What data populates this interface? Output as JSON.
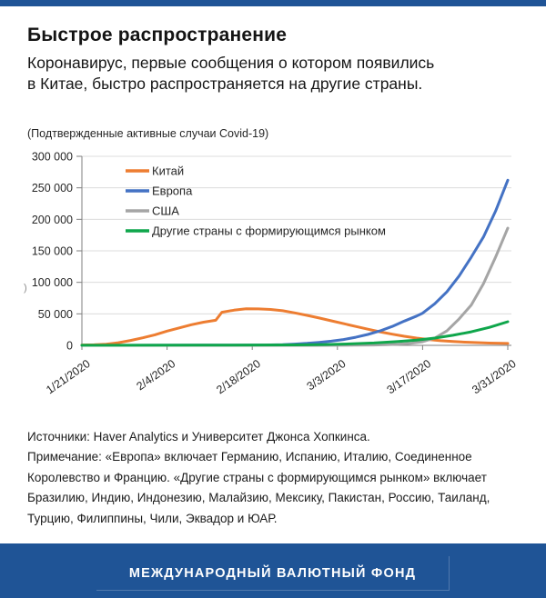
{
  "header": {
    "title": "Быстрое распространение",
    "subtitle_lines": [
      "Коронавирус, первые сообщения о котором появились",
      "в Китае, быстро распространяется на другие страны."
    ]
  },
  "stray": {
    "text": ")"
  },
  "chart_data": {
    "type": "line",
    "title": "(Подтвержденные активные случаи Covid-19)",
    "xlabel": "",
    "ylabel": "",
    "ylim": [
      0,
      300000
    ],
    "grid": true,
    "legend_position": "top-left-inside",
    "y_ticks": [
      {
        "v": 300000,
        "label": "300 000"
      },
      {
        "v": 250000,
        "label": "250 000"
      },
      {
        "v": 200000,
        "label": "200 000"
      },
      {
        "v": 150000,
        "label": "150 000"
      },
      {
        "v": 100000,
        "label": "100 000"
      },
      {
        "v": 50000,
        "label": "50 000"
      },
      {
        "v": 0,
        "label": "0"
      }
    ],
    "x_ticks": [
      "1/21/2020",
      "2/4/2020",
      "2/18/2020",
      "3/3/2020",
      "3/17/2020",
      "3/31/2020"
    ],
    "series": [
      {
        "name": "Китай",
        "color": "#ED7D31",
        "points": [
          [
            "1/21/2020",
            550
          ],
          [
            "1/23/2020",
            900
          ],
          [
            "1/25/2020",
            1900
          ],
          [
            "1/27/2020",
            4200
          ],
          [
            "1/29/2020",
            7800
          ],
          [
            "1/31/2020",
            11900
          ],
          [
            "2/2/2020",
            16800
          ],
          [
            "2/4/2020",
            22600
          ],
          [
            "2/6/2020",
            27700
          ],
          [
            "2/8/2020",
            32700
          ],
          [
            "2/10/2020",
            36800
          ],
          [
            "2/12/2020",
            39800
          ],
          [
            "2/13/2020",
            52500
          ],
          [
            "2/15/2020",
            55800
          ],
          [
            "2/17/2020",
            58000
          ],
          [
            "2/19/2020",
            57800
          ],
          [
            "2/21/2020",
            57000
          ],
          [
            "2/23/2020",
            55000
          ],
          [
            "2/25/2020",
            51500
          ],
          [
            "2/27/2020",
            47600
          ],
          [
            "2/29/2020",
            43400
          ],
          [
            "3/2/2020",
            39000
          ],
          [
            "3/4/2020",
            34500
          ],
          [
            "3/6/2020",
            30000
          ],
          [
            "3/8/2020",
            25700
          ],
          [
            "3/10/2020",
            21500
          ],
          [
            "3/12/2020",
            17700
          ],
          [
            "3/14/2020",
            14400
          ],
          [
            "3/16/2020",
            11600
          ],
          [
            "3/18/2020",
            9300
          ],
          [
            "3/20/2020",
            7400
          ],
          [
            "3/22/2020",
            6100
          ],
          [
            "3/24/2020",
            5100
          ],
          [
            "3/26/2020",
            4300
          ],
          [
            "3/28/2020",
            3600
          ],
          [
            "3/31/2020",
            3000
          ]
        ]
      },
      {
        "name": "Европа",
        "color": "#4472C4",
        "points": [
          [
            "1/21/2020",
            0
          ],
          [
            "2/1/2020",
            100
          ],
          [
            "2/10/2020",
            300
          ],
          [
            "2/15/2020",
            400
          ],
          [
            "2/20/2020",
            600
          ],
          [
            "2/23/2020",
            1200
          ],
          [
            "2/25/2020",
            2000
          ],
          [
            "2/27/2020",
            3200
          ],
          [
            "2/29/2020",
            4800
          ],
          [
            "3/2/2020",
            6700
          ],
          [
            "3/4/2020",
            9300
          ],
          [
            "3/6/2020",
            12800
          ],
          [
            "3/8/2020",
            17300
          ],
          [
            "3/10/2020",
            23000
          ],
          [
            "3/12/2020",
            30000
          ],
          [
            "3/14/2020",
            38500
          ],
          [
            "3/16/2020",
            46500
          ],
          [
            "3/17/2020",
            51000
          ],
          [
            "3/19/2020",
            66000
          ],
          [
            "3/21/2020",
            85000
          ],
          [
            "3/23/2020",
            110000
          ],
          [
            "3/25/2020",
            140000
          ],
          [
            "3/27/2020",
            172000
          ],
          [
            "3/29/2020",
            213000
          ],
          [
            "3/31/2020",
            262000
          ]
        ]
      },
      {
        "name": "США",
        "color": "#A5A5A5",
        "points": [
          [
            "1/21/2020",
            0
          ],
          [
            "2/20/2020",
            15
          ],
          [
            "2/28/2020",
            60
          ],
          [
            "3/3/2020",
            150
          ],
          [
            "3/6/2020",
            300
          ],
          [
            "3/9/2020",
            600
          ],
          [
            "3/11/2020",
            1000
          ],
          [
            "3/13/2020",
            1900
          ],
          [
            "3/15/2020",
            3200
          ],
          [
            "3/17/2020",
            5800
          ],
          [
            "3/19/2020",
            11500
          ],
          [
            "3/21/2020",
            23000
          ],
          [
            "3/23/2020",
            42000
          ],
          [
            "3/25/2020",
            64000
          ],
          [
            "3/27/2020",
            98000
          ],
          [
            "3/29/2020",
            140000
          ],
          [
            "3/31/2020",
            186000
          ]
        ]
      },
      {
        "name": "Другие страны с формирующимся рынком",
        "color": "#0FA64B",
        "points": [
          [
            "1/21/2020",
            100
          ],
          [
            "2/10/2020",
            300
          ],
          [
            "2/25/2020",
            700
          ],
          [
            "3/1/2020",
            1300
          ],
          [
            "3/5/2020",
            2300
          ],
          [
            "3/9/2020",
            3800
          ],
          [
            "3/13/2020",
            6000
          ],
          [
            "3/16/2020",
            8200
          ],
          [
            "3/19/2020",
            11500
          ],
          [
            "3/22/2020",
            16000
          ],
          [
            "3/25/2020",
            21500
          ],
          [
            "3/28/2020",
            28500
          ],
          [
            "3/31/2020",
            37500
          ]
        ]
      }
    ]
  },
  "notes": {
    "lines": [
      "Источники: Haver Analytics и Университет Джонса Хопкинса.",
      "Примечание: «Европа» включает Германию, Испанию, Италию, Соединенное",
      "Королевство и Францию. «Другие страны с формирующимся рынком» включает",
      "Бразилию, Индию, Индонезию, Малайзию, Мексику, Пакистан, Россию, Таиланд,",
      "Турцию, Филиппины, Чили, Эквадор и ЮАР."
    ]
  },
  "footer": {
    "label": "МЕЖДУНАРОДНЫЙ ВАЛЮТНЫЙ ФОНД"
  },
  "colors": {
    "accent_navy": "#1F5496",
    "grid": "#DCDCDC",
    "axis": "#7F7F7F",
    "chart_text": "#262626"
  }
}
